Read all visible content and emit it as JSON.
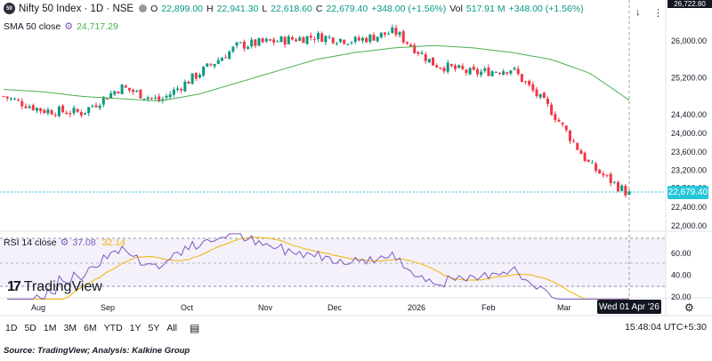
{
  "header": {
    "symbol_icon": "50",
    "symbol_title": "Nifty 50 Index · 1D · NSE",
    "o_label": "O",
    "o_val": "22,899.00",
    "h_label": "H",
    "h_val": "22,941.30",
    "l_label": "L",
    "l_val": "22,618.60",
    "c_label": "C",
    "c_val": "22,679.40",
    "change": "+348.00 (+1.56%)",
    "vol_label": "Vol",
    "vol_val": "517.91 M",
    "vol_change": "+348.00 (+1.56%)"
  },
  "sma": {
    "name": "SMA 50 close",
    "value": "24,717.29"
  },
  "rsi": {
    "name": "RSI 14 close",
    "value": "37.08",
    "ma": "32.14"
  },
  "price_axis": {
    "ticks": [
      "26,000.00",
      "25,200.00",
      "24,400.00",
      "24,000.00",
      "23,600.00",
      "23,200.00",
      "22,800.00",
      "22,400.00",
      "22,000.00"
    ],
    "current_price": "22,679.40",
    "top_tag": "26,722.80"
  },
  "rsi_axis": {
    "ticks": [
      "60.00",
      "40.00",
      "20.00"
    ]
  },
  "time_axis": {
    "labels": [
      "Aug",
      "Sep",
      "Oct",
      "Nov",
      "Dec",
      "2026",
      "Feb",
      "Mar"
    ],
    "crosshair_date": "Wed 01 Apr '26"
  },
  "toolbar": {
    "timeframes": [
      "1D",
      "5D",
      "1M",
      "3M",
      "6M",
      "YTD",
      "1Y",
      "5Y",
      "All"
    ],
    "clock": "15:48:04 UTC+5:30"
  },
  "logo_text": "TradingView",
  "source_text": "Source: TradingView; Analysis: Kalkine Group",
  "colors": {
    "up": "#089981",
    "down": "#f23645",
    "sma": "#4caf50",
    "rsi": "#7e57c2",
    "rsi_ma": "#f0b400",
    "price_tag": "#26c6da"
  },
  "chart_data": {
    "type": "line",
    "title": "Nifty 50 Index · 1D · NSE",
    "series": [
      {
        "name": "SMA 50 close",
        "x": [
          "Jul-28",
          "Aug-15",
          "Sep-01",
          "Sep-15",
          "Oct-01",
          "Oct-15",
          "Nov-01",
          "Nov-15",
          "Dec-01",
          "Dec-15",
          "Jan-01",
          "Jan-15",
          "Feb-01",
          "Feb-15",
          "Mar-01",
          "Mar-15",
          "Apr-01"
        ],
        "values": [
          24950,
          24900,
          24800,
          24750,
          24700,
          24850,
          25100,
          25350,
          25600,
          25750,
          25850,
          25900,
          25850,
          25750,
          25600,
          25300,
          24717
        ]
      },
      {
        "name": "close",
        "x": [
          "Jul-28",
          "Aug-15",
          "Sep-01",
          "Sep-15",
          "Oct-01",
          "Oct-15",
          "Nov-01",
          "Nov-15",
          "Dec-01",
          "Dec-15",
          "Jan-01",
          "Jan-15",
          "Feb-01",
          "Feb-15",
          "Mar-01",
          "Mar-15",
          "Apr-01"
        ],
        "values": [
          24800,
          24500,
          24450,
          25000,
          24700,
          25300,
          25900,
          26000,
          26100,
          26000,
          26200,
          25500,
          25300,
          25400,
          24500,
          23300,
          22679
        ]
      }
    ],
    "ylim": [
      22000,
      26700
    ]
  }
}
